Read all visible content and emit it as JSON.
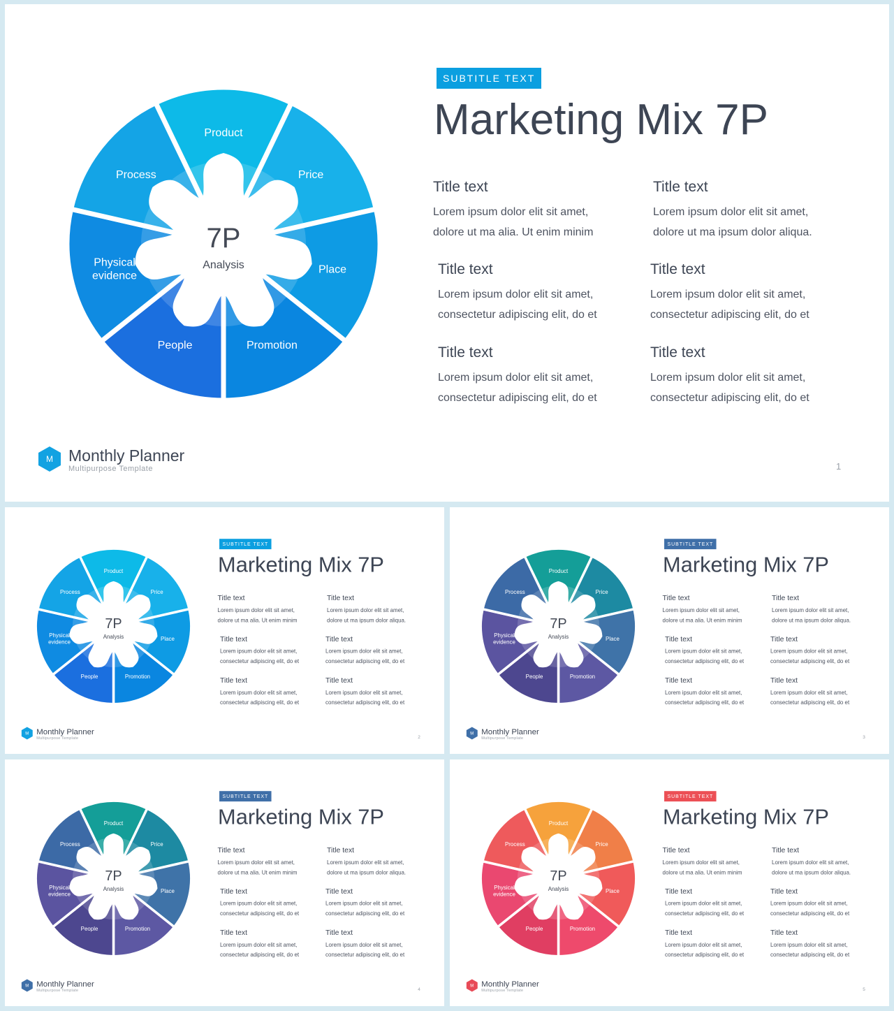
{
  "slides": [
    {
      "subtitle": "SUBTITLE TEXT",
      "title": "Marketing Mix 7P",
      "center": {
        "main": "7P",
        "sub": "Analysis"
      },
      "segments": [
        "Product",
        "Price",
        "Place",
        "Promotion",
        "People",
        "Physical evidence",
        "Process"
      ],
      "items": [
        {
          "title": "Title text",
          "line1": "Lorem ipsum dolor elit sit amet,",
          "line2": "dolore ut ma alia. Ut enim minim"
        },
        {
          "title": "Title text",
          "line1": "Lorem ipsum dolor elit sit amet,",
          "line2": "dolore ut ma ipsum dolor aliqua."
        },
        {
          "title": "Title text",
          "line1": "Lorem ipsum dolor elit sit amet,",
          "line2": "consectetur adipiscing elit, do et"
        },
        {
          "title": "Title text",
          "line1": "Lorem ipsum dolor elit sit amet,",
          "line2": "consectetur adipiscing elit, do et"
        },
        {
          "title": "Title text",
          "line1": "Lorem ipsum dolor elit sit amet,",
          "line2": "consectetur adipiscing elit, do et"
        },
        {
          "title": "Title text",
          "line1": "Lorem ipsum dolor elit sit amet,",
          "line2": "consectetur adipiscing elit, do et"
        }
      ],
      "brand": {
        "logo_letter": "M",
        "name": "Monthly Planner",
        "tagline": "Multipurpose  Template"
      },
      "page_number": "1",
      "colors": {
        "badge": "#0b9fe0",
        "logo": "#12a2e2",
        "segments": [
          "#0dbae8",
          "#18b1ea",
          "#0e9be4",
          "#0a86e0",
          "#1b6fdf",
          "#0f8be2",
          "#14a4e6"
        ]
      }
    },
    {
      "subtitle": "SUBTITLE TEXT",
      "title": "Marketing Mix 7P",
      "center": {
        "main": "7P",
        "sub": "Analysis"
      },
      "segments": [
        "Product",
        "Price",
        "Place",
        "Promotion",
        "People",
        "Physical evidence",
        "Process"
      ],
      "items": [
        {
          "title": "Title text",
          "line1": "Lorem ipsum dolor elit sit amet,",
          "line2": "dolore ut ma alia. Ut enim minim"
        },
        {
          "title": "Title text",
          "line1": "Lorem ipsum dolor elit sit amet,",
          "line2": "dolore ut ma ipsum dolor aliqua."
        },
        {
          "title": "Title text",
          "line1": "Lorem ipsum dolor elit sit amet,",
          "line2": "consectetur adipiscing elit, do et"
        },
        {
          "title": "Title text",
          "line1": "Lorem ipsum dolor elit sit amet,",
          "line2": "consectetur adipiscing elit, do et"
        },
        {
          "title": "Title text",
          "line1": "Lorem ipsum dolor elit sit amet,",
          "line2": "consectetur adipiscing elit, do et"
        },
        {
          "title": "Title text",
          "line1": "Lorem ipsum dolor elit sit amet,",
          "line2": "consectetur adipiscing elit, do et"
        }
      ],
      "brand": {
        "logo_letter": "M",
        "name": "Monthly Planner",
        "tagline": "Multipurpose  Template"
      },
      "page_number": "2",
      "colors": {
        "badge": "#0b9fe0",
        "logo": "#12a2e2",
        "segments": [
          "#0dbae8",
          "#18b1ea",
          "#0e9be4",
          "#0a86e0",
          "#1b6fdf",
          "#0f8be2",
          "#14a4e6"
        ]
      }
    },
    {
      "subtitle": "SUBTITLE TEXT",
      "title": "Marketing Mix 7P",
      "center": {
        "main": "7P",
        "sub": "Analysis"
      },
      "segments": [
        "Product",
        "Price",
        "Place",
        "Promotion",
        "People",
        "Physical evidence",
        "Process"
      ],
      "items": [
        {
          "title": "Title text",
          "line1": "Lorem ipsum dolor elit sit amet,",
          "line2": "dolore ut ma alia. Ut enim minim"
        },
        {
          "title": "Title text",
          "line1": "Lorem ipsum dolor elit sit amet,",
          "line2": "dolore ut ma ipsum dolor aliqua."
        },
        {
          "title": "Title text",
          "line1": "Lorem ipsum dolor elit sit amet,",
          "line2": "consectetur adipiscing elit, do et"
        },
        {
          "title": "Title text",
          "line1": "Lorem ipsum dolor elit sit amet,",
          "line2": "consectetur adipiscing elit, do et"
        },
        {
          "title": "Title text",
          "line1": "Lorem ipsum dolor elit sit amet,",
          "line2": "consectetur adipiscing elit, do et"
        },
        {
          "title": "Title text",
          "line1": "Lorem ipsum dolor elit sit amet,",
          "line2": "consectetur adipiscing elit, do et"
        }
      ],
      "brand": {
        "logo_letter": "M",
        "name": "Monthly Planner",
        "tagline": "Multipurpose  Template"
      },
      "page_number": "3",
      "colors": {
        "badge": "#3f6fa8",
        "logo": "#3f6fa8",
        "segments": [
          "#149e98",
          "#1d8aa2",
          "#3f73a8",
          "#5d58a3",
          "#4d478f",
          "#5b54a0",
          "#3c6aa6"
        ]
      }
    },
    {
      "subtitle": "SUBTITLE TEXT",
      "title": "Marketing Mix 7P",
      "center": {
        "main": "7P",
        "sub": "Analysis"
      },
      "segments": [
        "Product",
        "Price",
        "Place",
        "Promotion",
        "People",
        "Physical evidence",
        "Process"
      ],
      "items": [
        {
          "title": "Title text",
          "line1": "Lorem ipsum dolor elit sit amet,",
          "line2": "dolore ut ma alia. Ut enim minim"
        },
        {
          "title": "Title text",
          "line1": "Lorem ipsum dolor elit sit amet,",
          "line2": "dolore ut ma ipsum dolor aliqua."
        },
        {
          "title": "Title text",
          "line1": "Lorem ipsum dolor elit sit amet,",
          "line2": "consectetur adipiscing elit, do et"
        },
        {
          "title": "Title text",
          "line1": "Lorem ipsum dolor elit sit amet,",
          "line2": "consectetur adipiscing elit, do et"
        },
        {
          "title": "Title text",
          "line1": "Lorem ipsum dolor elit sit amet,",
          "line2": "consectetur adipiscing elit, do et"
        },
        {
          "title": "Title text",
          "line1": "Lorem ipsum dolor elit sit amet,",
          "line2": "consectetur adipiscing elit, do et"
        }
      ],
      "brand": {
        "logo_letter": "M",
        "name": "Monthly Planner",
        "tagline": "Multipurpose  Template"
      },
      "page_number": "4",
      "colors": {
        "badge": "#3f6fa8",
        "logo": "#3f6fa8",
        "segments": [
          "#149e98",
          "#1d8aa2",
          "#3f73a8",
          "#5d58a3",
          "#4d478f",
          "#5b54a0",
          "#3c6aa6"
        ]
      }
    },
    {
      "subtitle": "SUBTITLE TEXT",
      "title": "Marketing Mix 7P",
      "center": {
        "main": "7P",
        "sub": "Analysis"
      },
      "segments": [
        "Product",
        "Price",
        "Place",
        "Promotion",
        "People",
        "Physical evidence",
        "Process"
      ],
      "items": [
        {
          "title": "Title text",
          "line1": "Lorem ipsum dolor elit sit amet,",
          "line2": "dolore ut ma alia. Ut enim minim"
        },
        {
          "title": "Title text",
          "line1": "Lorem ipsum dolor elit sit amet,",
          "line2": "dolore ut ma ipsum dolor aliqua."
        },
        {
          "title": "Title text",
          "line1": "Lorem ipsum dolor elit sit amet,",
          "line2": "consectetur adipiscing elit, do et"
        },
        {
          "title": "Title text",
          "line1": "Lorem ipsum dolor elit sit amet,",
          "line2": "consectetur adipiscing elit, do et"
        },
        {
          "title": "Title text",
          "line1": "Lorem ipsum dolor elit sit amet,",
          "line2": "consectetur adipiscing elit, do et"
        },
        {
          "title": "Title text",
          "line1": "Lorem ipsum dolor elit sit amet,",
          "line2": "consectetur adipiscing elit, do et"
        }
      ],
      "brand": {
        "logo_letter": "M",
        "name": "Monthly Planner",
        "tagline": "Multipurpose  Template"
      },
      "page_number": "5",
      "colors": {
        "badge": "#ec4f55",
        "logo": "#e84a57",
        "segments": [
          "#f6a23c",
          "#f07f48",
          "#f05a5a",
          "#ee4a6c",
          "#e03e62",
          "#ea4870",
          "#ee5a5c"
        ]
      }
    }
  ]
}
